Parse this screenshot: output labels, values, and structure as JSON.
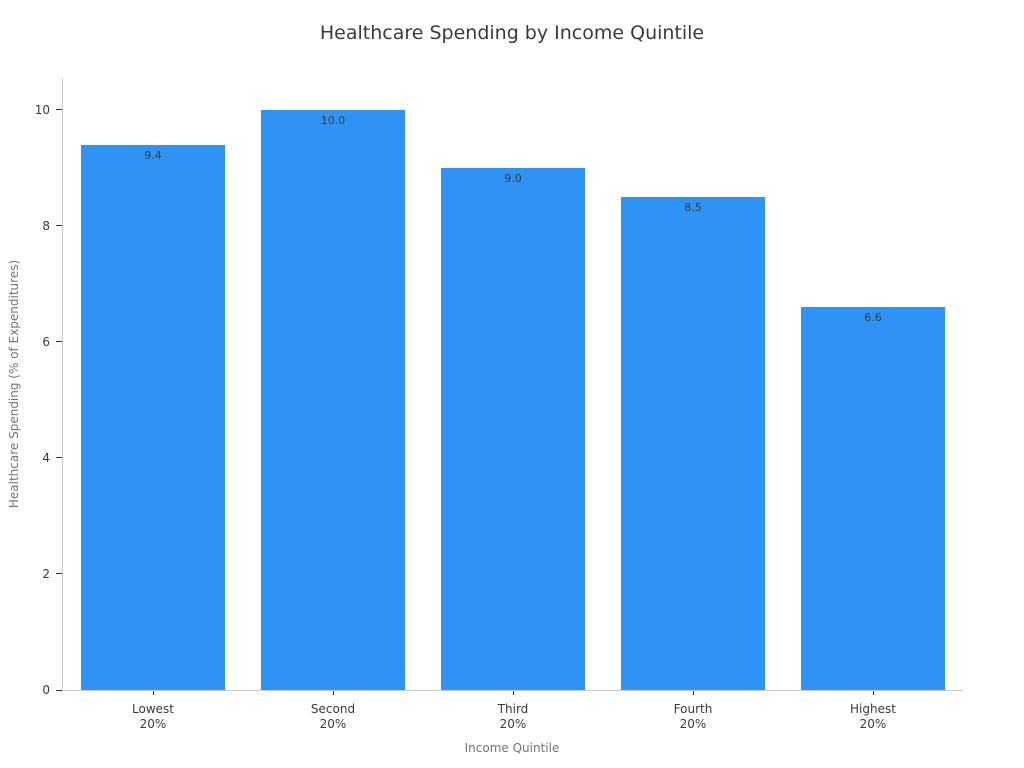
{
  "colors": {
    "bar": "#2e93f5",
    "spine": "#cccccc",
    "tick_mark": "#333333",
    "tick_text": "#3a3a3a",
    "axis_label_text": "#757575",
    "title_text": "#3a3a3a",
    "bar_label_text": "#3a3a3a",
    "background": "#ffffff"
  },
  "chart_data": {
    "type": "bar",
    "title": "Healthcare Spending by Income Quintile",
    "xlabel": "Income Quintile",
    "ylabel": "Healthcare Spending (% of Expenditures)",
    "categories": [
      [
        "Lowest",
        "20%"
      ],
      [
        "Second",
        "20%"
      ],
      [
        "Third",
        "20%"
      ],
      [
        "Fourth",
        "20%"
      ],
      [
        "Highest",
        "20%"
      ]
    ],
    "values": [
      9.4,
      10.0,
      9.0,
      8.5,
      6.6
    ],
    "bar_labels": [
      "9.4",
      "10.0",
      "9.0",
      "8.5",
      "6.6"
    ],
    "yticks": [
      0,
      2,
      4,
      6,
      8,
      10
    ],
    "ylim": [
      0,
      10.55
    ],
    "grid": false,
    "legend": null
  }
}
